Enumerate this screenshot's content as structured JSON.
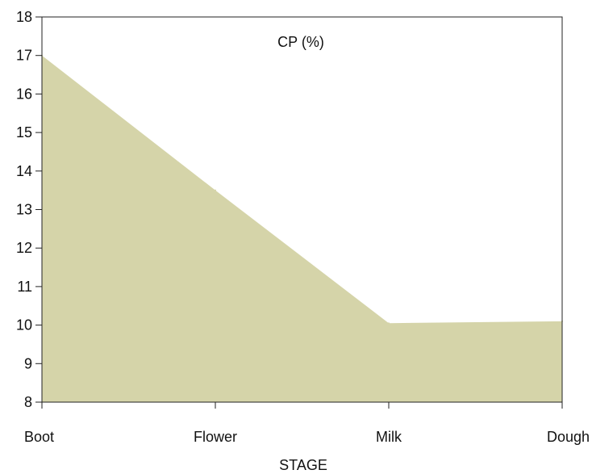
{
  "chart_data": {
    "type": "area",
    "title": "CP (%)",
    "xlabel": "STAGE",
    "ylabel": "",
    "categories": [
      "Boot",
      "Flower",
      "Milk",
      "Dough"
    ],
    "series": [
      {
        "values": [
          17.0,
          13.5,
          10.05,
          10.1
        ]
      }
    ],
    "ylim": [
      8,
      18
    ],
    "yticks": [
      "8",
      "9",
      "10",
      "11",
      "12",
      "13",
      "14",
      "15",
      "16",
      "17",
      "18"
    ],
    "grid": false,
    "legend": "none",
    "colors": {
      "fill": "#d5d4a9",
      "axis": "#222222"
    }
  }
}
